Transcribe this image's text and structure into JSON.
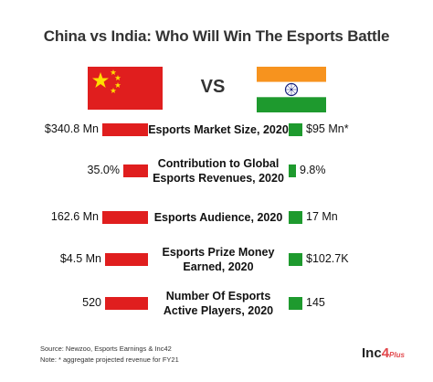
{
  "title": "China vs India: Who Will Win The Esports Battle",
  "vs_label": "VS",
  "colors": {
    "china": "#e01e1e",
    "india": "#1e9a2e",
    "saffron": "#f7931e",
    "chakra": "#1a237e"
  },
  "chart_data": {
    "type": "bar",
    "categories": [
      "Esports Market Size, 2020",
      "Contribution to Global Esports Revenues, 2020",
      "Esports Audience, 2020",
      "Esports Prize Money Earned, 2020",
      "Number Of Esports Active Players, 2020"
    ],
    "series": [
      {
        "name": "China",
        "values": [
          340.8,
          35.0,
          162.6,
          4.5,
          520
        ],
        "labels": [
          "$340.8 Mn",
          "35.0%",
          "162.6 Mn",
          "$4.5 Mn",
          "520"
        ]
      },
      {
        "name": "India",
        "values": [
          95,
          9.8,
          17,
          0.1027,
          145
        ],
        "labels": [
          "$95 Mn*",
          "9.8%",
          "17 Mn",
          "$102.7K",
          "145"
        ]
      }
    ]
  },
  "rows": [
    {
      "line1": "Esports Market Size, 2020",
      "line2": ""
    },
    {
      "line1": "Contribution to Global",
      "line2": "Esports Revenues, 2020"
    },
    {
      "line1": "Esports Audience, 2020",
      "line2": ""
    },
    {
      "line1": "Esports Prize Money",
      "line2": "Earned, 2020"
    },
    {
      "line1": "Number Of Esports",
      "line2": "Active Players, 2020"
    }
  ],
  "footer": {
    "source": "Source: Newzoo, Esports Earnings & Inc42",
    "note": "Note: * aggregate projected revenue for FY21"
  },
  "brand": {
    "name": "Inc",
    "digit": "4",
    "plus": "Plus"
  }
}
